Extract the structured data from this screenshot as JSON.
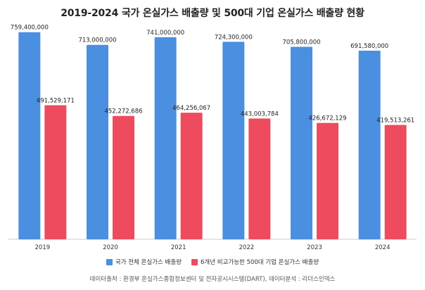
{
  "chart_data": {
    "type": "bar",
    "title": "2019-2024 국가 온실가스 배출량 및 500대 기업 온실가스 배출량 현황",
    "categories": [
      "2019",
      "2020",
      "2021",
      "2022",
      "2023",
      "2024"
    ],
    "series": [
      {
        "name": "국가 전체 온실가스 배출량",
        "color": "#4A8FE0",
        "values": [
          759400000,
          713000000,
          741000000,
          724300000,
          705800000,
          691580000
        ],
        "labels": [
          "759,400,000",
          "713,000,000",
          "741,000,000",
          "724,300,000",
          "705,800,000",
          "691,580,000"
        ]
      },
      {
        "name": "6개년 비교가능한 500대 기업 온실가스 배출량",
        "color": "#EE4B5E",
        "values": [
          491529171,
          452272686,
          464256067,
          443003784,
          426672129,
          419513261
        ],
        "labels": [
          "491,529,171",
          "452,272,686",
          "464,256,067",
          "443,003,784",
          "426,672,129",
          "419,513,261"
        ]
      }
    ],
    "ylim": [
      0,
      800000000
    ],
    "grid": false,
    "legend": "bottom"
  },
  "footer": {
    "source": "데이터출처 : 환경부 온실가스종합정보센터 및 전자공시시스템(DART), 데이터분석 : 리더스인덱스"
  }
}
